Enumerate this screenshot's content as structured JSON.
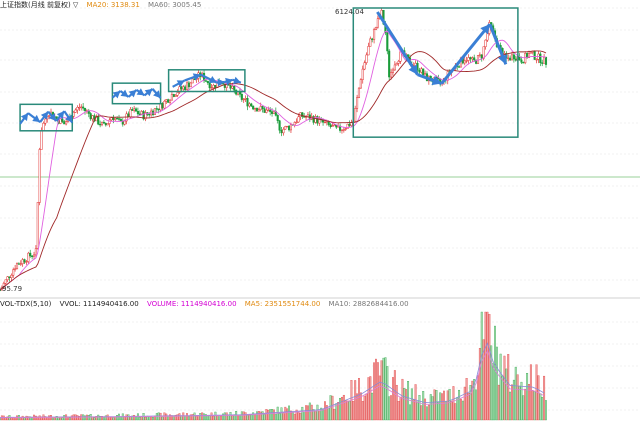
{
  "legend_top": {
    "title": "上证指数(月线 前复权) ▽",
    "ma20": "MA20: 3138.31",
    "ma60": "MA60: 3005.45"
  },
  "legend_vol": {
    "indicator": "VOL-TDX(5,10)",
    "vvol": "VVOL: 1114940416.00",
    "volume": "VOLUME: 1114940416.00",
    "ma5": "MA5: 2351551744.00",
    "ma10": "MA10: 2882684416.00"
  },
  "high_label": "6124.04",
  "low_label": "95.79",
  "colors": {
    "up": "#e03030",
    "down": "#1a9c3a",
    "ma_magenta": "#e060e0",
    "ma_darkred": "#a02828",
    "box": "#2a8a7a",
    "arrow": "#3a7fd5",
    "green_line": "#9ad09a",
    "grid": "#e2e2e2"
  },
  "chart_data": {
    "type": "candlestick",
    "price_points": [
      [
        0,
        95.79
      ],
      [
        0.04,
        140
      ],
      [
        0.09,
        170
      ],
      [
        0.1,
        1000
      ],
      [
        0.12,
        1400
      ],
      [
        0.14,
        1250
      ],
      [
        0.16,
        1150
      ],
      [
        0.18,
        1350
      ],
      [
        0.2,
        1500
      ],
      [
        0.23,
        1280
      ],
      [
        0.26,
        1100
      ],
      [
        0.28,
        1300
      ],
      [
        0.3,
        1150
      ],
      [
        0.33,
        1400
      ],
      [
        0.36,
        1300
      ],
      [
        0.4,
        1500
      ],
      [
        0.43,
        1800
      ],
      [
        0.46,
        2000
      ],
      [
        0.5,
        2400
      ],
      [
        0.53,
        2000
      ],
      [
        0.55,
        2200
      ],
      [
        0.58,
        1900
      ],
      [
        0.6,
        1700
      ],
      [
        0.63,
        1500
      ],
      [
        0.66,
        1400
      ],
      [
        0.68,
        1350
      ],
      [
        0.7,
        1050
      ],
      [
        0.72,
        1100
      ],
      [
        0.75,
        1300
      ],
      [
        0.78,
        1250
      ],
      [
        0.81,
        1150
      ],
      [
        0.84,
        1050
      ],
      [
        0.86,
        1100
      ],
      [
        0.88,
        1200
      ],
      [
        0.9,
        2400
      ],
      [
        0.92,
        3800
      ],
      [
        0.94,
        5200
      ],
      [
        0.95,
        6124
      ],
      [
        0.96,
        4500
      ],
      [
        0.97,
        2300
      ],
      [
        0.98,
        2800
      ],
      [
        1.0,
        3300
      ],
      [
        1.02,
        2900
      ],
      [
        1.04,
        2700
      ],
      [
        1.06,
        2300
      ],
      [
        1.08,
        2200
      ],
      [
        1.1,
        2100
      ],
      [
        1.12,
        2500
      ],
      [
        1.14,
        2800
      ],
      [
        1.16,
        3100
      ],
      [
        1.18,
        2900
      ],
      [
        1.2,
        3200
      ],
      [
        1.22,
        5100
      ],
      [
        1.24,
        3700
      ],
      [
        1.26,
        3000
      ],
      [
        1.28,
        3200
      ],
      [
        1.3,
        3000
      ],
      [
        1.32,
        3300
      ],
      [
        1.34,
        3100
      ],
      [
        1.36,
        2900
      ]
    ],
    "volume_profile": [
      [
        0,
        0.03
      ],
      [
        0.3,
        0.04
      ],
      [
        0.6,
        0.06
      ],
      [
        0.8,
        0.12
      ],
      [
        0.9,
        0.3
      ],
      [
        0.95,
        0.45
      ],
      [
        1.0,
        0.28
      ],
      [
        1.06,
        0.2
      ],
      [
        1.12,
        0.22
      ],
      [
        1.18,
        0.35
      ],
      [
        1.21,
        0.95
      ],
      [
        1.23,
        0.65
      ],
      [
        1.27,
        0.4
      ],
      [
        1.33,
        0.38
      ],
      [
        1.36,
        0.3
      ]
    ],
    "annotations": [
      {
        "type": "zigzag",
        "segment": 1,
        "points": [
          [
            0.05,
            1150
          ],
          [
            0.07,
            1350
          ],
          [
            0.1,
            1180
          ],
          [
            0.12,
            1380
          ],
          [
            0.14,
            1200
          ],
          [
            0.16,
            1390
          ],
          [
            0.18,
            1170
          ]
        ]
      },
      {
        "type": "zigzag",
        "segment": 2,
        "points": [
          [
            0.28,
            1700
          ],
          [
            0.3,
            1880
          ],
          [
            0.32,
            1720
          ],
          [
            0.34,
            1910
          ],
          [
            0.36,
            1760
          ],
          [
            0.38,
            1940
          ],
          [
            0.4,
            1690
          ]
        ]
      },
      {
        "type": "zigzag",
        "segment": 3,
        "points": [
          [
            0.43,
            2000
          ],
          [
            0.46,
            2200
          ],
          [
            0.5,
            2400
          ],
          [
            0.54,
            2130
          ],
          [
            0.56,
            2150
          ],
          [
            0.58,
            2220
          ],
          [
            0.6,
            2130
          ]
        ]
      },
      {
        "type": "zigzag",
        "segment": 4,
        "points": [
          [
            0.94,
            6124
          ],
          [
            1.04,
            2400
          ],
          [
            1.1,
            2100
          ],
          [
            1.22,
            5100
          ],
          [
            1.26,
            2800
          ]
        ]
      }
    ]
  }
}
